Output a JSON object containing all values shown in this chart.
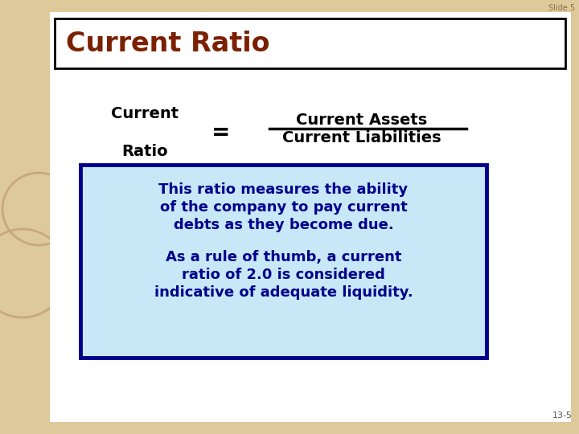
{
  "slide_label": "Slide 5",
  "page_label": "13-5",
  "title": "Current Ratio",
  "title_color": "#7B2000",
  "title_bg": "#FFFFFF",
  "title_border": "#000000",
  "bg_color": "#DEC99A",
  "main_bg": "#FFFFFF",
  "left_label_line1": "Current",
  "left_label_line2": "Ratio",
  "equals_sign": "=",
  "numerator": "Current Assets",
  "denominator": "Current Liabilities",
  "formula_text_color": "#000000",
  "box_bg": "#C8E8F8",
  "box_border": "#00008B",
  "box_text1_line1": "This ratio measures the ability",
  "box_text1_line2": "of the company to pay current",
  "box_text1_line3": "debts as they become due.",
  "box_text2_line1": "As a rule of thumb, a current",
  "box_text2_line2": "ratio of 2.0 is considered",
  "box_text2_line3": "indicative of adequate liquidity.",
  "box_text_color": "#00008B",
  "circle_color": "#C8A87A"
}
